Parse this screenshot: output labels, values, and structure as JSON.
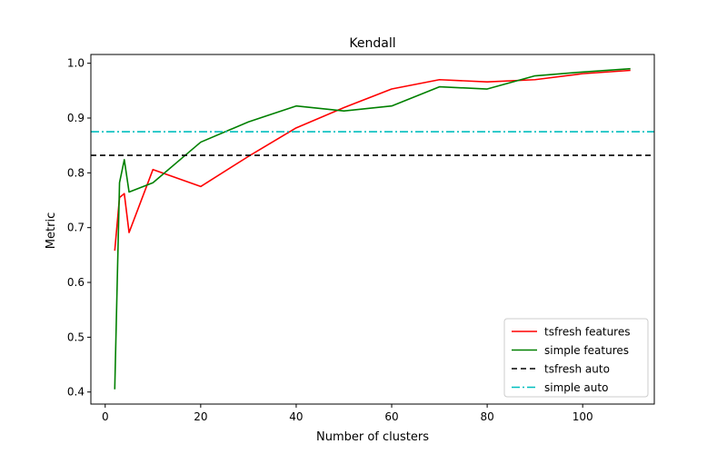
{
  "chart_data": {
    "type": "line",
    "title": "Kendall",
    "xlabel": "Number of clusters",
    "ylabel": "Metric",
    "xlim": [
      -3,
      115
    ],
    "ylim": [
      0.378,
      1.016
    ],
    "xticks": [
      0,
      20,
      40,
      60,
      80,
      100
    ],
    "yticks": [
      0.4,
      0.5,
      0.6,
      0.7,
      0.8,
      0.9,
      1.0
    ],
    "ytick_labels": [
      "0.4",
      "0.5",
      "0.6",
      "0.7",
      "0.8",
      "0.9",
      "1.0"
    ],
    "grid": false,
    "legend_position": "lower-right",
    "series": [
      {
        "name": "tsfresh features",
        "color": "#ff0000",
        "dash": "solid",
        "x": [
          2,
          3,
          4,
          5,
          10,
          20,
          30,
          40,
          50,
          60,
          70,
          80,
          90,
          100,
          110
        ],
        "y": [
          0.658,
          0.755,
          0.762,
          0.691,
          0.806,
          0.775,
          0.83,
          0.882,
          0.919,
          0.953,
          0.97,
          0.966,
          0.97,
          0.981,
          0.987
        ]
      },
      {
        "name": "simple features",
        "color": "#008000",
        "dash": "solid",
        "x": [
          2,
          3,
          4,
          5,
          10,
          20,
          30,
          40,
          50,
          60,
          70,
          80,
          90,
          100,
          110
        ],
        "y": [
          0.405,
          0.782,
          0.824,
          0.765,
          0.782,
          0.856,
          0.893,
          0.922,
          0.913,
          0.922,
          0.957,
          0.953,
          0.977,
          0.984,
          0.99
        ]
      },
      {
        "name": "tsfresh auto",
        "color": "#000000",
        "dash": "dashed",
        "hline": 0.832
      },
      {
        "name": "simple auto",
        "color": "#00bfbf",
        "dash": "dashdot",
        "hline": 0.875
      }
    ]
  }
}
